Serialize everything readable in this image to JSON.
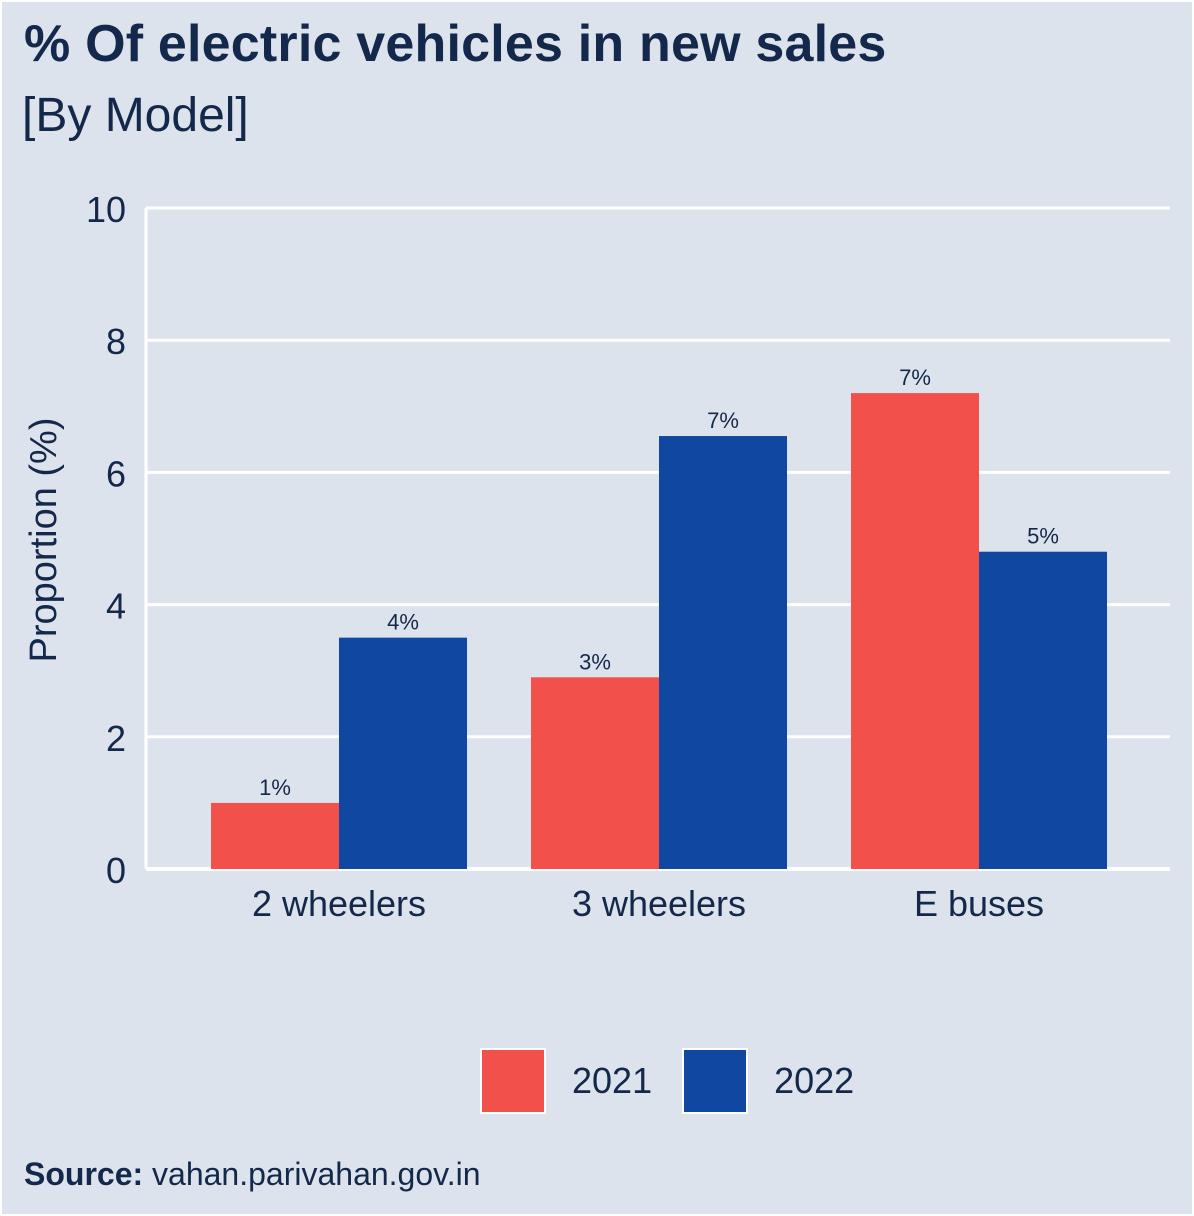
{
  "title": "% Of electric vehicles in new sales",
  "subtitle": "[By Model]",
  "source": {
    "label": "Source:",
    "text": "vahan.parivahan.gov.in"
  },
  "colors": {
    "background": "#dce3ec",
    "text": "#14284b",
    "grid": "#ffffff",
    "series_2021": "#f2504b",
    "series_2022": "#0f47a1"
  },
  "chart_data": {
    "type": "bar",
    "title": "% Of electric vehicles in new sales",
    "subtitle": "[By Model]",
    "xlabel": "",
    "ylabel": "Proportion (%)",
    "ylim": [
      0,
      10
    ],
    "yticks": [
      0,
      2,
      4,
      6,
      8,
      10
    ],
    "grid": true,
    "legend_position": "bottom",
    "categories": [
      "2 wheelers",
      "3 wheelers",
      "E buses"
    ],
    "series": [
      {
        "name": "2021",
        "color": "#f2504b",
        "values": [
          1.0,
          2.9,
          7.2
        ],
        "labels": [
          "1%",
          "3%",
          "7%"
        ]
      },
      {
        "name": "2022",
        "color": "#0f47a1",
        "values": [
          3.5,
          6.55,
          4.8
        ],
        "labels": [
          "4%",
          "7%",
          "5%"
        ]
      }
    ]
  }
}
